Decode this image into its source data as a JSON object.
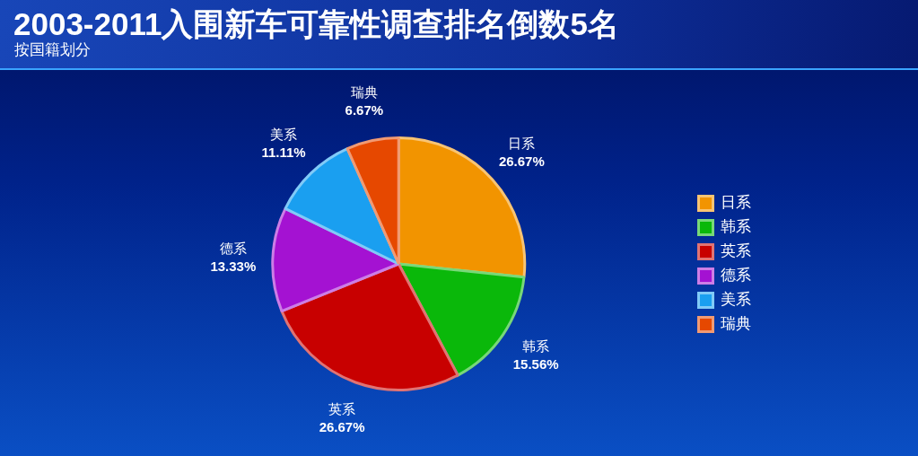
{
  "chart_data": {
    "type": "pie",
    "title": "2003-2011入围新车可靠性调查排名倒数5名",
    "subtitle": "按国籍划分",
    "categories": [
      "日系",
      "韩系",
      "英系",
      "德系",
      "美系",
      "瑞典"
    ],
    "values": [
      26.67,
      15.56,
      26.67,
      13.33,
      11.11,
      6.67
    ],
    "value_labels": [
      "26.67%",
      "15.56%",
      "26.67%",
      "13.33%",
      "11.11%",
      "6.67%"
    ],
    "colors": [
      "#f29400",
      "#0ab80a",
      "#c80000",
      "#a412d2",
      "#1a9ff0",
      "#e64800"
    ],
    "legend": "right"
  }
}
